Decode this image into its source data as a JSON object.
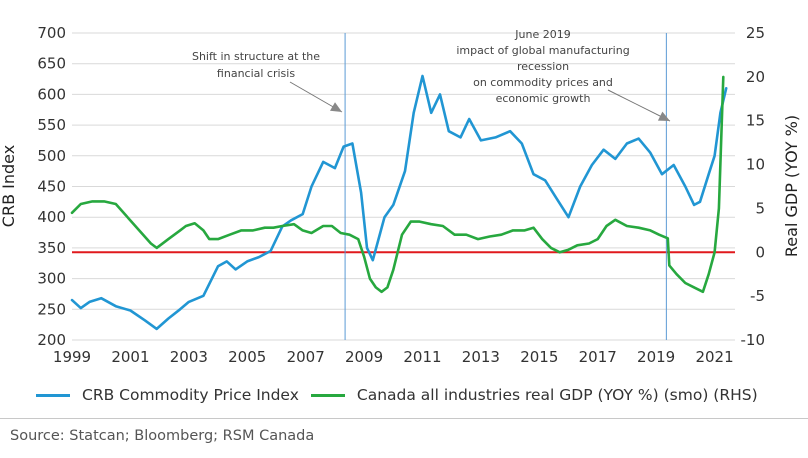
{
  "chart_data": {
    "type": "line",
    "title": "",
    "xlabel": "",
    "ylabel_left": "CRB Index",
    "ylabel_right": "Real GDP (YOY %)",
    "xlim": [
      1999,
      2021.7
    ],
    "ylim_left": [
      200,
      700
    ],
    "ylim_right": [
      -10,
      25
    ],
    "x_ticks": [
      1999,
      2001,
      2003,
      2005,
      2007,
      2009,
      2011,
      2013,
      2015,
      2017,
      2019,
      2021
    ],
    "y_ticks_left": [
      200,
      250,
      300,
      350,
      400,
      450,
      500,
      550,
      600,
      650,
      700
    ],
    "y_ticks_right": [
      -10,
      -5,
      0,
      5,
      10,
      15,
      20,
      25
    ],
    "grid": "horizontal",
    "legend_position": "bottom",
    "series": [
      {
        "name": "CRB Commodity Price Index",
        "axis": "left",
        "color": "#2196d3",
        "x": [
          1999.0,
          1999.3,
          1999.6,
          2000.0,
          2000.5,
          2001.0,
          2001.5,
          2001.9,
          2002.3,
          2002.7,
          2003.0,
          2003.5,
          2004.0,
          2004.3,
          2004.6,
          2005.0,
          2005.4,
          2005.8,
          2006.2,
          2006.5,
          2006.9,
          2007.2,
          2007.6,
          2008.0,
          2008.3,
          2008.6,
          2008.9,
          2009.1,
          2009.3,
          2009.7,
          2010.0,
          2010.4,
          2010.7,
          2011.0,
          2011.3,
          2011.6,
          2011.9,
          2012.3,
          2012.6,
          2013.0,
          2013.5,
          2014.0,
          2014.4,
          2014.8,
          2015.2,
          2015.6,
          2016.0,
          2016.4,
          2016.8,
          2017.2,
          2017.6,
          2018.0,
          2018.4,
          2018.8,
          2019.2,
          2019.6,
          2020.0,
          2020.3,
          2020.5,
          2020.8,
          2021.0,
          2021.2,
          2021.4
        ],
        "values": [
          265,
          252,
          262,
          268,
          255,
          248,
          232,
          218,
          235,
          250,
          262,
          272,
          320,
          328,
          315,
          328,
          335,
          345,
          385,
          395,
          405,
          450,
          490,
          480,
          515,
          520,
          440,
          350,
          330,
          400,
          420,
          475,
          570,
          630,
          570,
          600,
          540,
          530,
          560,
          525,
          530,
          540,
          520,
          470,
          460,
          430,
          400,
          450,
          485,
          510,
          495,
          520,
          528,
          505,
          470,
          485,
          450,
          420,
          425,
          470,
          500,
          570,
          610
        ]
      },
      {
        "name": "Canada all industries real GDP (YOY %) (smo) (RHS)",
        "axis": "right",
        "color": "#27a83f",
        "x": [
          1999.0,
          1999.3,
          1999.7,
          2000.1,
          2000.5,
          2000.9,
          2001.3,
          2001.7,
          2001.9,
          2002.3,
          2002.7,
          2002.9,
          2003.2,
          2003.5,
          2003.7,
          2004.0,
          2004.4,
          2004.8,
          2005.2,
          2005.6,
          2005.9,
          2006.2,
          2006.6,
          2006.9,
          2007.2,
          2007.6,
          2007.9,
          2008.2,
          2008.5,
          2008.8,
          2009.0,
          2009.2,
          2009.4,
          2009.6,
          2009.8,
          2010.0,
          2010.3,
          2010.6,
          2010.9,
          2011.3,
          2011.7,
          2012.1,
          2012.5,
          2012.9,
          2013.3,
          2013.7,
          2014.1,
          2014.5,
          2014.8,
          2015.1,
          2015.4,
          2015.7,
          2016.0,
          2016.3,
          2016.7,
          2017.0,
          2017.3,
          2017.6,
          2018.0,
          2018.4,
          2018.8,
          2019.1,
          2019.4,
          2019.45,
          2019.7,
          2020.0,
          2020.3,
          2020.6,
          2020.8,
          2021.0,
          2021.15,
          2021.3
        ],
        "values": [
          4.5,
          5.5,
          5.8,
          5.8,
          5.5,
          4.0,
          2.5,
          1.0,
          0.5,
          1.5,
          2.5,
          3.0,
          3.3,
          2.5,
          1.5,
          1.5,
          2.0,
          2.5,
          2.5,
          2.8,
          2.8,
          3.0,
          3.2,
          2.5,
          2.2,
          3.0,
          3.0,
          2.2,
          2.0,
          1.5,
          -0.5,
          -3.0,
          -4.0,
          -4.5,
          -4.0,
          -2.0,
          2.0,
          3.5,
          3.5,
          3.2,
          3.0,
          2.0,
          2.0,
          1.5,
          1.8,
          2.0,
          2.5,
          2.5,
          2.8,
          1.5,
          0.5,
          0.0,
          0.3,
          0.8,
          1.0,
          1.5,
          3.0,
          3.7,
          3.0,
          2.8,
          2.5,
          2.0,
          1.6,
          -1.5,
          -2.5,
          -3.5,
          -4.0,
          -4.5,
          -2.5,
          0.0,
          5.0,
          20.0
        ]
      }
    ],
    "reference_lines": [
      {
        "kind": "horizontal",
        "axis": "right",
        "value": 0,
        "color": "#e0191d"
      },
      {
        "kind": "vertical",
        "x": 2008.35,
        "color": "#5b9bd5"
      },
      {
        "kind": "vertical",
        "x": 2019.35,
        "color": "#5b9bd5"
      }
    ],
    "annotations": [
      {
        "lines": [
          "Shift in structure at the",
          "financial crisis"
        ]
      },
      {
        "lines": [
          "June 2019",
          "impact of global manufacturing",
          "recession",
          "on commodity prices and",
          "economic growth"
        ]
      }
    ]
  },
  "legend": {
    "crb_label": "CRB Commodity Price Index",
    "gdp_label": "Canada all industries real GDP (YOY %) (smo) (RHS)"
  },
  "source": "Source: Statcan; Bloomberg; RSM Canada"
}
